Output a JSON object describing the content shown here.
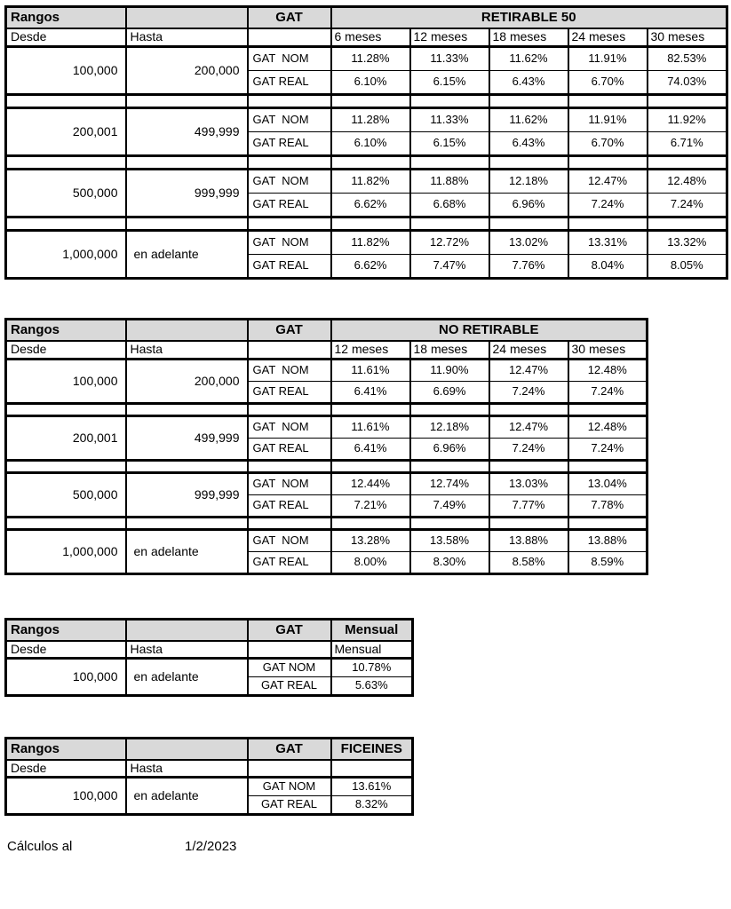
{
  "colors": {
    "header_bg": "#d9d9d9",
    "border": "#000000"
  },
  "footer": {
    "label": "Cálculos al",
    "date": "1/2/2023"
  },
  "tables": [
    {
      "rangos_header": "Rangos",
      "gat_header": "GAT",
      "title": "RETIRABLE 50",
      "desde_header": "Desde",
      "hasta_header": "Hasta",
      "nom_label": "GAT  NOM",
      "real_label": "GAT REAL",
      "terms": [
        "6 meses",
        "12 meses",
        "18 meses",
        "24 meses",
        "30 meses"
      ],
      "rows": [
        {
          "desde": "100,000",
          "hasta": "200,000",
          "nom": [
            "11.28%",
            "11.33%",
            "11.62%",
            "11.91%",
            "82.53%"
          ],
          "real": [
            "6.10%",
            "6.15%",
            "6.43%",
            "6.70%",
            "74.03%"
          ]
        },
        {
          "desde": "200,001",
          "hasta": "499,999",
          "nom": [
            "11.28%",
            "11.33%",
            "11.62%",
            "11.91%",
            "11.92%"
          ],
          "real": [
            "6.10%",
            "6.15%",
            "6.43%",
            "6.70%",
            "6.71%"
          ]
        },
        {
          "desde": "500,000",
          "hasta": "999,999",
          "nom": [
            "11.82%",
            "11.88%",
            "12.18%",
            "12.47%",
            "12.48%"
          ],
          "real": [
            "6.62%",
            "6.68%",
            "6.96%",
            "7.24%",
            "7.24%"
          ]
        },
        {
          "desde": "1,000,000",
          "hasta": "en adelante",
          "nom": [
            "11.82%",
            "12.72%",
            "13.02%",
            "13.31%",
            "13.32%"
          ],
          "real": [
            "6.62%",
            "7.47%",
            "7.76%",
            "8.04%",
            "8.05%"
          ]
        }
      ]
    },
    {
      "rangos_header": "Rangos",
      "gat_header": "GAT",
      "title": "NO RETIRABLE",
      "desde_header": "Desde",
      "hasta_header": "Hasta",
      "nom_label": "GAT  NOM",
      "real_label": "GAT REAL",
      "terms": [
        "12 meses",
        "18 meses",
        "24 meses",
        "30 meses"
      ],
      "rows": [
        {
          "desde": "100,000",
          "hasta": "200,000",
          "nom": [
            "11.61%",
            "11.90%",
            "12.47%",
            "12.48%"
          ],
          "real": [
            "6.41%",
            "6.69%",
            "7.24%",
            "7.24%"
          ]
        },
        {
          "desde": "200,001",
          "hasta": "499,999",
          "nom": [
            "11.61%",
            "12.18%",
            "12.47%",
            "12.48%"
          ],
          "real": [
            "6.41%",
            "6.96%",
            "7.24%",
            "7.24%"
          ]
        },
        {
          "desde": "500,000",
          "hasta": "999,999",
          "nom": [
            "12.44%",
            "12.74%",
            "13.03%",
            "13.04%"
          ],
          "real": [
            "7.21%",
            "7.49%",
            "7.77%",
            "7.78%"
          ]
        },
        {
          "desde": "1,000,000",
          "hasta": "en adelante",
          "nom": [
            "13.28%",
            "13.58%",
            "13.88%",
            "13.88%"
          ],
          "real": [
            "8.00%",
            "8.30%",
            "8.58%",
            "8.59%"
          ]
        }
      ]
    },
    {
      "rangos_header": "Rangos",
      "gat_header": "GAT",
      "title": "Mensual",
      "desde_header": "Desde",
      "hasta_header": "Hasta",
      "sub_header": "Mensual",
      "nom_label": "GAT NOM",
      "real_label": "GAT REAL",
      "rows": [
        {
          "desde": "100,000",
          "hasta": "en adelante",
          "nom": [
            "10.78%"
          ],
          "real": [
            "5.63%"
          ]
        }
      ]
    },
    {
      "rangos_header": "Rangos",
      "gat_header": "GAT",
      "title": "FICEINES",
      "desde_header": "Desde",
      "hasta_header": "Hasta",
      "sub_header": "",
      "nom_label": "GAT NOM",
      "real_label": "GAT REAL",
      "rows": [
        {
          "desde": "100,000",
          "hasta": "en adelante",
          "nom": [
            "13.61%"
          ],
          "real": [
            "8.32%"
          ]
        }
      ]
    }
  ]
}
